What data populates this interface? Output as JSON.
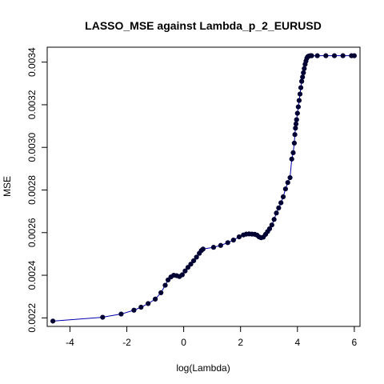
{
  "chart_data": {
    "type": "scatter",
    "title": "LASSO_MSE against Lambda_p_2_EURUSD",
    "xlabel": "log(Lambda)",
    "ylabel": "MSE",
    "xlim": [
      -4.8,
      6.2
    ],
    "ylim": [
      0.00216,
      0.00347
    ],
    "x_ticks": [
      -4,
      -2,
      0,
      2,
      4,
      6
    ],
    "y_ticks": [
      0.0022,
      0.0024,
      0.0026,
      0.0028,
      0.003,
      0.0032,
      0.0034
    ],
    "y_tick_labels": [
      "0.0022",
      "0.0024",
      "0.0026",
      "0.0028",
      "0.0030",
      "0.0032",
      "0.0034"
    ],
    "grid": false,
    "point_color": "#000033",
    "line_color": "#0000aa",
    "series": [
      {
        "x": [
          -4.6,
          -2.85,
          -2.2,
          -1.75,
          -1.5,
          -1.25,
          -1.0,
          -0.8,
          -0.65,
          -0.55,
          -0.45,
          -0.35,
          -0.25,
          -0.15,
          -0.05,
          0.05,
          0.15,
          0.25,
          0.35,
          0.45,
          0.55,
          0.62,
          0.68,
          1.05,
          1.3,
          1.55,
          1.75,
          1.95,
          2.1,
          2.2,
          2.3,
          2.4,
          2.5,
          2.58,
          2.65,
          2.72,
          2.8,
          2.88,
          2.95,
          3.02,
          3.1,
          3.18,
          3.26,
          3.34,
          3.42,
          3.5,
          3.58,
          3.66,
          3.74,
          3.8,
          3.85,
          3.89,
          3.91,
          3.93,
          3.95,
          3.97,
          4.0,
          4.03,
          4.06,
          4.09,
          4.12,
          4.15,
          4.18,
          4.21,
          4.24,
          4.27,
          4.3,
          4.33,
          4.36,
          4.39,
          4.42,
          4.45,
          4.5,
          4.7,
          5.0,
          5.3,
          5.6,
          5.9,
          6.0
        ],
        "y": [
          0.002185,
          0.002203,
          0.002218,
          0.002236,
          0.00225,
          0.002267,
          0.002288,
          0.002318,
          0.002353,
          0.002378,
          0.002392,
          0.0024,
          0.002398,
          0.002394,
          0.002402,
          0.00242,
          0.002437,
          0.002452,
          0.002468,
          0.002485,
          0.002503,
          0.002516,
          0.002523,
          0.002531,
          0.00254,
          0.002553,
          0.002565,
          0.00258,
          0.002589,
          0.002593,
          0.002594,
          0.002593,
          0.002592,
          0.002588,
          0.00258,
          0.002576,
          0.002579,
          0.002592,
          0.002605,
          0.002618,
          0.002636,
          0.002662,
          0.002692,
          0.002716,
          0.00274,
          0.002768,
          0.002805,
          0.002835,
          0.002858,
          0.002945,
          0.002975,
          0.00302,
          0.00306,
          0.00309,
          0.00311,
          0.00313,
          0.00316,
          0.00319,
          0.00322,
          0.00325,
          0.00328,
          0.00331,
          0.00333,
          0.00335,
          0.00337,
          0.00339,
          0.003405,
          0.003418,
          0.003425,
          0.003428,
          0.003429,
          0.00343,
          0.00343,
          0.00343,
          0.00343,
          0.00343,
          0.00343,
          0.00343,
          0.00343
        ]
      }
    ]
  }
}
